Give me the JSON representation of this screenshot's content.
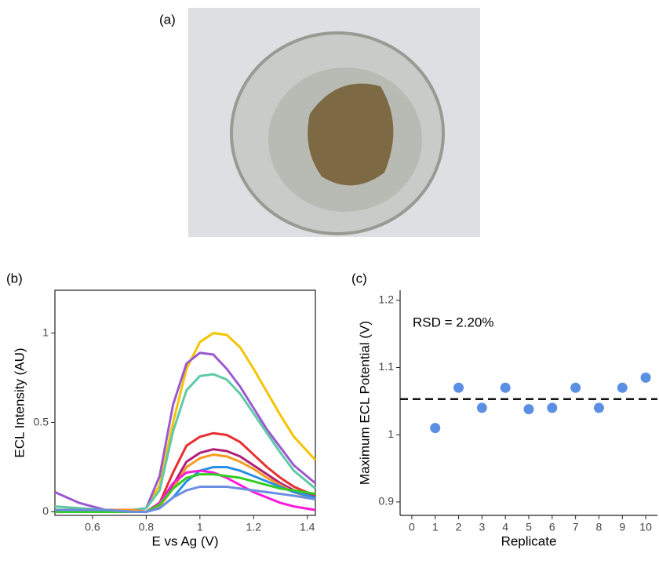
{
  "photo_panel": {
    "label": "(a)"
  },
  "chart_data": [
    {
      "type": "line",
      "label": "(b)",
      "x_label": "E vs Ag (V)",
      "y_label": "ECL Intensity (AU)",
      "xlim": [
        0.46,
        1.43
      ],
      "ylim": [
        -0.02,
        1.24
      ],
      "xticks": [
        0.6,
        0.8,
        1.0,
        1.2,
        1.4
      ],
      "yticks": [
        0.0,
        0.5,
        1.0
      ],
      "frame": true,
      "x": [
        0.46,
        0.55,
        0.65,
        0.75,
        0.8,
        0.85,
        0.9,
        0.95,
        1.0,
        1.05,
        1.1,
        1.15,
        1.2,
        1.25,
        1.3,
        1.35,
        1.43
      ],
      "series": [
        {
          "color": "#f5c400",
          "values": [
            0.03,
            0.02,
            0.01,
            0.01,
            0.02,
            0.15,
            0.5,
            0.8,
            0.95,
            1.0,
            0.99,
            0.92,
            0.8,
            0.67,
            0.54,
            0.42,
            0.29
          ]
        },
        {
          "color": "#9b59d0",
          "values": [
            0.11,
            0.05,
            0.01,
            0.01,
            0.02,
            0.2,
            0.6,
            0.83,
            0.89,
            0.88,
            0.8,
            0.7,
            0.58,
            0.46,
            0.36,
            0.26,
            0.16
          ]
        },
        {
          "color": "#5fc9a8",
          "values": [
            0.03,
            0.02,
            0.01,
            0.01,
            0.02,
            0.12,
            0.45,
            0.68,
            0.76,
            0.77,
            0.74,
            0.66,
            0.55,
            0.44,
            0.33,
            0.23,
            0.13
          ]
        },
        {
          "color": "#e83030",
          "values": [
            0.01,
            0.01,
            0.01,
            0.01,
            0.0,
            0.05,
            0.22,
            0.37,
            0.42,
            0.44,
            0.43,
            0.39,
            0.32,
            0.25,
            0.19,
            0.14,
            0.09
          ]
        },
        {
          "color": "#b0207a",
          "values": [
            0.01,
            0.01,
            0.01,
            0.01,
            0.0,
            0.03,
            0.15,
            0.28,
            0.33,
            0.35,
            0.34,
            0.31,
            0.26,
            0.21,
            0.16,
            0.12,
            0.08
          ]
        },
        {
          "color": "#f59a1e",
          "values": [
            0.01,
            0.01,
            0.01,
            0.01,
            0.0,
            0.03,
            0.13,
            0.25,
            0.3,
            0.32,
            0.31,
            0.28,
            0.24,
            0.19,
            0.15,
            0.11,
            0.07
          ]
        },
        {
          "color": "#2a8fe6",
          "values": [
            0.0,
            0.01,
            0.01,
            0.0,
            0.0,
            0.02,
            0.08,
            0.17,
            0.23,
            0.25,
            0.25,
            0.23,
            0.2,
            0.17,
            0.14,
            0.11,
            0.08
          ]
        },
        {
          "color": "#ff1ad9",
          "values": [
            0.0,
            0.0,
            0.0,
            0.0,
            0.0,
            0.05,
            0.16,
            0.22,
            0.23,
            0.22,
            0.19,
            0.15,
            0.11,
            0.08,
            0.05,
            0.03,
            0.01
          ]
        },
        {
          "color": "#33cc22",
          "values": [
            0.0,
            0.0,
            0.0,
            0.0,
            0.0,
            0.04,
            0.13,
            0.19,
            0.21,
            0.21,
            0.2,
            0.19,
            0.17,
            0.15,
            0.13,
            0.12,
            0.1
          ]
        },
        {
          "color": "#6a8fe0",
          "values": [
            0.01,
            0.01,
            0.01,
            0.0,
            0.0,
            0.02,
            0.08,
            0.12,
            0.14,
            0.14,
            0.14,
            0.13,
            0.12,
            0.11,
            0.1,
            0.09,
            0.07
          ]
        }
      ]
    },
    {
      "type": "scatter",
      "label": "(c)",
      "x_label": "Replicate",
      "y_label": "Maximum ECL Potential (V)",
      "annotation": "RSD = 2.20%",
      "hline": 1.053,
      "xlim": [
        -0.5,
        10.5
      ],
      "ylim": [
        0.88,
        1.215
      ],
      "xticks": [
        0,
        1,
        2,
        3,
        4,
        5,
        6,
        7,
        8,
        9,
        10
      ],
      "yticks": [
        0.9,
        1.0,
        1.1,
        1.2
      ],
      "frame": false,
      "x": [
        1,
        2,
        3,
        4,
        5,
        6,
        7,
        8,
        9,
        10
      ],
      "series": [
        {
          "color": "#5b8fe3",
          "values": [
            1.01,
            1.07,
            1.04,
            1.07,
            1.038,
            1.04,
            1.07,
            1.04,
            1.07,
            1.085
          ]
        }
      ]
    }
  ]
}
